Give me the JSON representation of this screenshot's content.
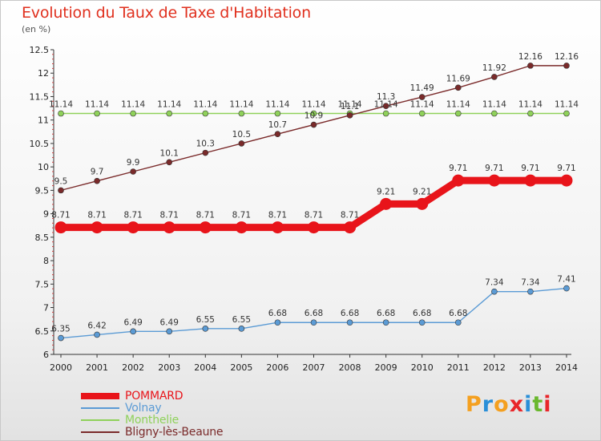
{
  "header": {
    "title": "Evolution du Taux de Taxe d'Habitation",
    "subtitle": "(en %)"
  },
  "logo": {
    "text": "Proxiti",
    "letter_colors": [
      "#f4a020",
      "#2a8fd8",
      "#f4a020",
      "#e8262a",
      "#2a8fd8",
      "#6ab82e",
      "#e8262a"
    ]
  },
  "chart_data": {
    "type": "line",
    "title": "Evolution du Taux de Taxe d'Habitation",
    "subtitle": "(en %)",
    "xlabel": "",
    "ylabel": "(en %)",
    "x": [
      "2000",
      "2001",
      "2002",
      "2003",
      "2004",
      "2005",
      "2006",
      "2007",
      "2008",
      "2009",
      "2010",
      "2011",
      "2012",
      "2013",
      "2014"
    ],
    "ylim": [
      6,
      12.5
    ],
    "yticks": [
      "6",
      "6.5",
      "7",
      "7.5",
      "8",
      "8.5",
      "9",
      "9.5",
      "10",
      "10.5",
      "11",
      "11.5",
      "12",
      "12.5"
    ],
    "grid": false,
    "legend_position": "bottom-left",
    "series": [
      {
        "name": "POMMARD",
        "color": "#e8141a",
        "emphasis": true,
        "values": [
          8.71,
          8.71,
          8.71,
          8.71,
          8.71,
          8.71,
          8.71,
          8.71,
          8.71,
          9.21,
          9.21,
          9.71,
          9.71,
          9.71,
          9.71
        ],
        "labels": [
          "8.71",
          "8.71",
          "8.71",
          "8.71",
          "8.71",
          "8.71",
          "8.71",
          "8.71",
          "8.71",
          "9.21",
          "9.21",
          "9.71",
          "9.71",
          "9.71",
          "9.71"
        ]
      },
      {
        "name": "Volnay",
        "color": "#5b9bd5",
        "emphasis": false,
        "values": [
          6.35,
          6.42,
          6.49,
          6.49,
          6.55,
          6.55,
          6.68,
          6.68,
          6.68,
          6.68,
          6.68,
          6.68,
          7.34,
          7.34,
          7.41
        ],
        "labels": [
          "6.35",
          "6.42",
          "6.49",
          "6.49",
          "6.55",
          "6.55",
          "6.68",
          "6.68",
          "6.68",
          "6.68",
          "6.68",
          "6.68",
          "7.34",
          "7.34",
          "7.41"
        ]
      },
      {
        "name": "Monthelie",
        "color": "#8fd15a",
        "emphasis": false,
        "values": [
          11.14,
          11.14,
          11.14,
          11.14,
          11.14,
          11.14,
          11.14,
          11.14,
          11.14,
          11.14,
          11.14,
          11.14,
          11.14,
          11.14,
          11.14
        ],
        "labels": [
          "11.14",
          "11.14",
          "11.14",
          "11.14",
          "11.14",
          "11.14",
          "11.14",
          "11.14",
          "11.14",
          "11.14",
          "11.14",
          "11.14",
          "11.14",
          "11.14",
          "11.14"
        ]
      },
      {
        "name": "Bligny-lès-Beaune",
        "color": "#7a2a2a",
        "emphasis": false,
        "values": [
          9.5,
          9.7,
          9.9,
          10.1,
          10.3,
          10.5,
          10.7,
          10.9,
          11.1,
          11.3,
          11.49,
          11.69,
          11.92,
          12.16,
          12.16
        ],
        "labels": [
          "9.5",
          "9.7",
          "9.9",
          "10.1",
          "10.3",
          "10.5",
          "10.7",
          "10.9",
          "11.1",
          "11.3",
          "11.49",
          "11.69",
          "11.92",
          "12.16",
          "12.16"
        ]
      }
    ]
  }
}
